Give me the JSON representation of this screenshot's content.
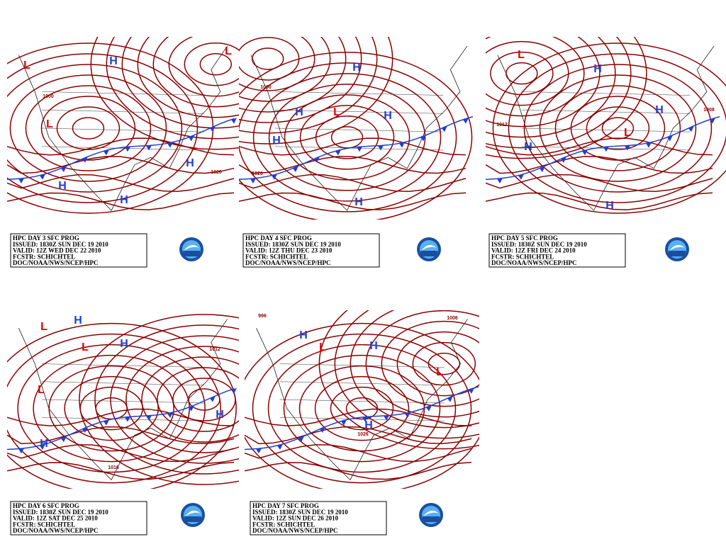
{
  "panels": [
    {
      "lines": [
        "HPC DAY 3 SFC PROG",
        "ISSUED: 1830Z SUN DEC 19 2010",
        "VALID: 12Z WED DEC 22 2010",
        "FCSTR: SCHICHTEL",
        "DOC/NOAA/NWS/NCEP/HPC"
      ],
      "symbols": [
        "H",
        "H",
        "H",
        "H",
        "L",
        "L",
        "L",
        "1020",
        "1000"
      ]
    },
    {
      "lines": [
        "HPC DAY 4 SFC PROG",
        "ISSUED: 1830Z SUN DEC 19 2010",
        "VALID: 12Z THU DEC 23 2010",
        "FCSTR: SCHICHTEL",
        "DOC/NOAA/NWS/NCEP/HPC"
      ],
      "symbols": [
        "H",
        "H",
        "H",
        "H",
        "H",
        "L",
        "1020",
        "1000"
      ]
    },
    {
      "lines": [
        "HPC DAY 5 SFC PROG",
        "ISSUED: 1830Z SUN DEC 19 2010",
        "VALID: 12Z FRI DEC 24 2010",
        "FCSTR: SCHICHTEL",
        "DOC/NOAA/NWS/NCEP/HPC"
      ],
      "symbols": [
        "H",
        "H",
        "H",
        "H",
        "L",
        "L",
        "1012",
        "1008"
      ]
    },
    {
      "lines": [
        "HPC DAY 6 SFC PROG",
        "ISSUED: 1830Z SUN DEC 19 2010",
        "VALID: 12Z SAT DEC 25 2010",
        "FCSTR: SCHICHTEL",
        "DOC/NOAA/NWS/NCEP/HPC"
      ],
      "symbols": [
        "H",
        "H",
        "H",
        "H",
        "L",
        "L",
        "L",
        "1016",
        "1012"
      ]
    },
    {
      "lines": [
        "HPC DAY 7 SFC PROG",
        "ISSUED: 1830Z SUN DEC 19 2010",
        "VALID: 12Z SUN DEC 26 2010",
        "FCSTR: SCHICHTEL",
        "DOC/NOAA/NWS/NCEP/HPC"
      ],
      "symbols": [
        "H",
        "H",
        "H",
        "L",
        "L",
        "1026",
        "1006",
        "996"
      ]
    }
  ]
}
